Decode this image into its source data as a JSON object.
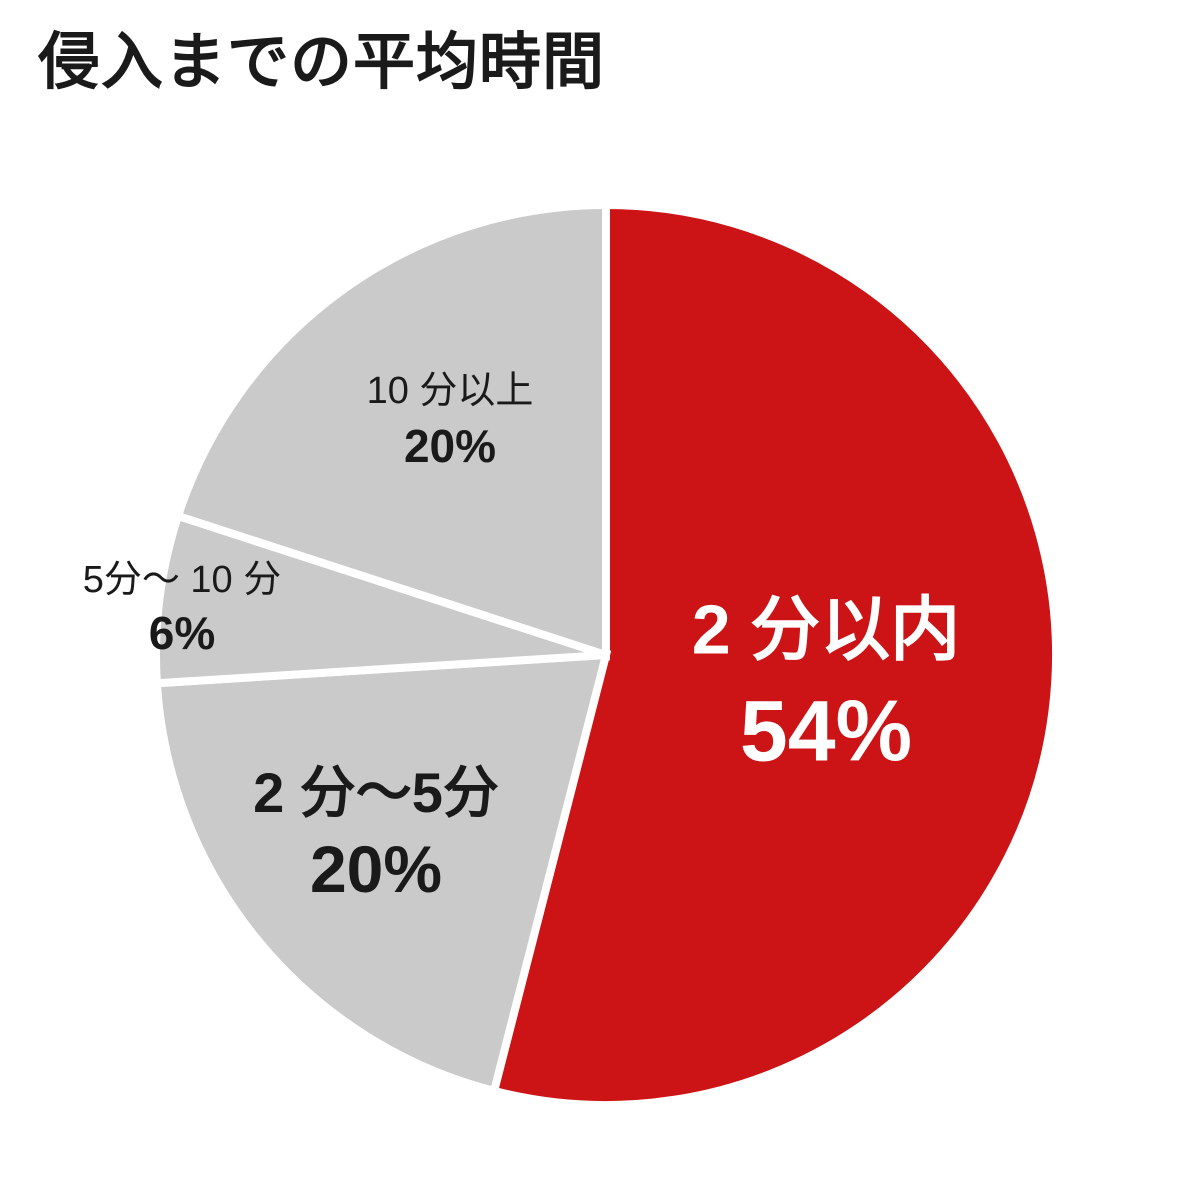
{
  "page": {
    "background_color": "#ffffff",
    "text_color": "#1a1a1a"
  },
  "title": "侵入までの平均時間",
  "chart_data": {
    "type": "pie",
    "title": "侵入までの平均時間",
    "unit": "percent",
    "start_angle_deg": 0,
    "direction": "clockwise",
    "legend": "none",
    "separator_color": "#ffffff",
    "slices": [
      {
        "label": "2 分以内",
        "value": 54,
        "pct_label": "54%",
        "color": "#cc1416",
        "label_color": "#ffffff"
      },
      {
        "label": "2 分〜5分",
        "value": 20,
        "pct_label": "20%",
        "color": "#cacaca",
        "label_color": "#1a1a1a"
      },
      {
        "label": "5分〜 10 分",
        "value": 6,
        "pct_label": "6%",
        "color": "#cacaca",
        "label_color": "#1a1a1a"
      },
      {
        "label": "10 分以上",
        "value": 20,
        "pct_label": "20%",
        "color": "#cacaca",
        "label_color": "#1a1a1a"
      }
    ]
  }
}
